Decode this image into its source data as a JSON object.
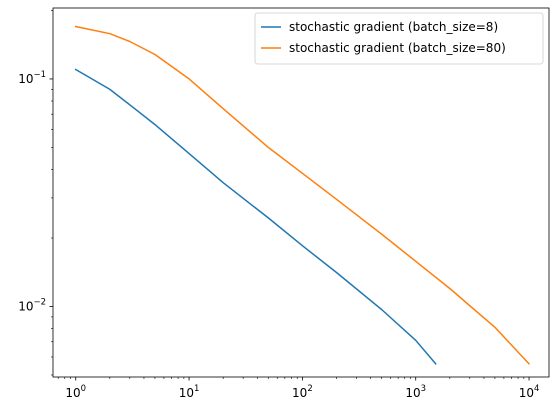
{
  "chart_data": {
    "type": "line",
    "title": "",
    "xlabel": "",
    "ylabel": "",
    "xscale": "log",
    "yscale": "log",
    "xlim": [
      0.63,
      15000
    ],
    "ylim": [
      0.0049,
      0.205
    ],
    "grid": false,
    "legend_position": "upper-right",
    "x_ticks": [
      {
        "value": 1,
        "base": "10",
        "exp": "0"
      },
      {
        "value": 10,
        "base": "10",
        "exp": "1"
      },
      {
        "value": 100,
        "base": "10",
        "exp": "2"
      },
      {
        "value": 1000,
        "base": "10",
        "exp": "3"
      },
      {
        "value": 10000,
        "base": "10",
        "exp": "4"
      }
    ],
    "y_ticks": [
      {
        "value": 0.1,
        "base": "10",
        "exp": "−1"
      },
      {
        "value": 0.01,
        "base": "10",
        "exp": "−2"
      }
    ],
    "series": [
      {
        "name": "stochastic gradient (batch_size=8)",
        "color": "#1f77b4",
        "x": [
          1,
          2,
          3,
          5,
          10,
          20,
          50,
          100,
          200,
          500,
          1000,
          1500
        ],
        "y": [
          0.11,
          0.09,
          0.077,
          0.063,
          0.047,
          0.035,
          0.0245,
          0.0185,
          0.0141,
          0.0097,
          0.0071,
          0.0056
        ]
      },
      {
        "name": "stochastic gradient (batch_size=80)",
        "color": "#ff7f0e",
        "x": [
          1,
          2,
          3,
          5,
          10,
          20,
          50,
          100,
          200,
          500,
          1000,
          2000,
          5000,
          10000
        ],
        "y": [
          0.17,
          0.158,
          0.146,
          0.128,
          0.1,
          0.074,
          0.05,
          0.0385,
          0.0296,
          0.0208,
          0.0158,
          0.012,
          0.0081,
          0.0056
        ]
      }
    ]
  }
}
